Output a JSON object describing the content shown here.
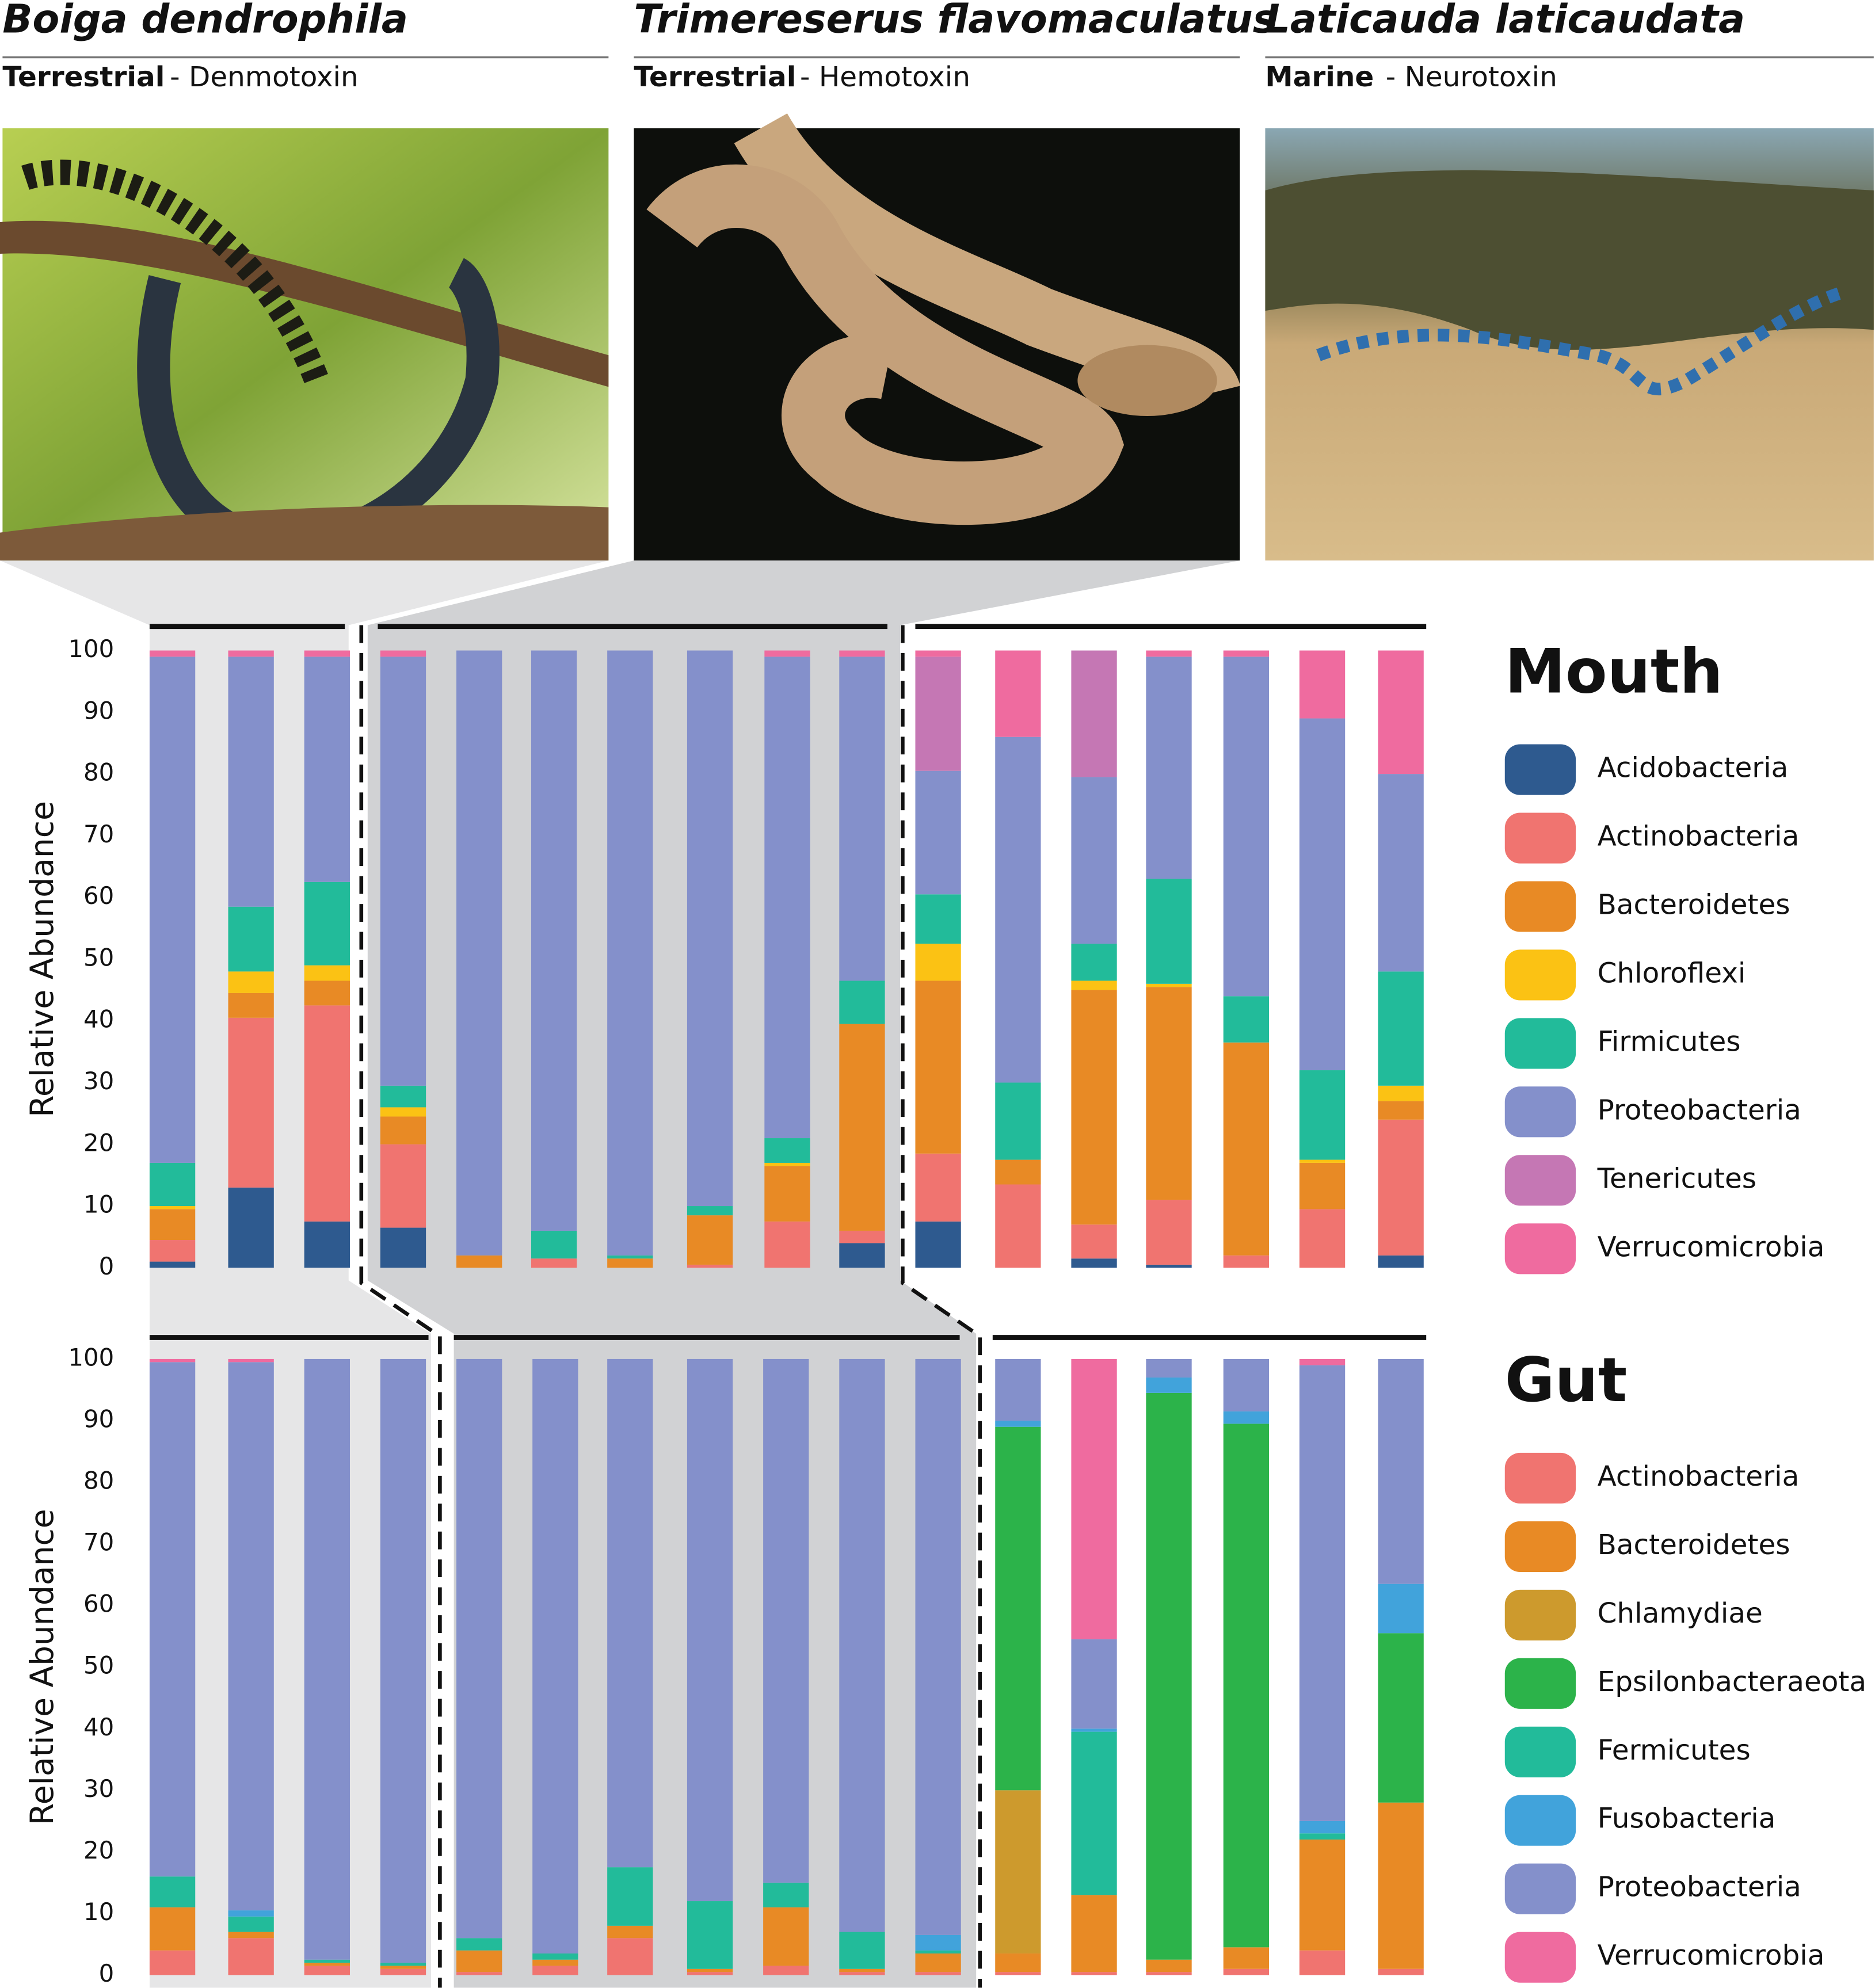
{
  "species": [
    {
      "name": "Boiga dendrophila",
      "habitat": "Terrestrial",
      "toxin": "- Denmotoxin"
    },
    {
      "name": "Trimereserus flavomaculatus",
      "habitat": "Terrestrial",
      "toxin": "- Hemotoxin"
    },
    {
      "name": "Laticauda laticaudata",
      "habitat": "Marine",
      "toxin": "- Neurotoxin"
    }
  ],
  "chart_data": [
    {
      "type": "stacked_bar",
      "title": "Mouth",
      "ylabel": "Relative Abundance",
      "categories": [
        null,
        null,
        null,
        null,
        null,
        null,
        null,
        null,
        null,
        null,
        null,
        null,
        null,
        null,
        null,
        null,
        null
      ],
      "ylim": [
        0,
        100
      ],
      "yticks": [
        0,
        10,
        20,
        30,
        40,
        50,
        60,
        70,
        80,
        90,
        100
      ],
      "series": [
        {
          "name": "Acidobacteria",
          "color": "#2e5a8f",
          "values": [
            1,
            13,
            7.5,
            6.5,
            0,
            0,
            0,
            0,
            0,
            4,
            7.5,
            0,
            1.5,
            0.5,
            0,
            0,
            2
          ]
        },
        {
          "name": "Actinobacteria",
          "color": "#f07470",
          "values": [
            3.5,
            27.5,
            35,
            13.5,
            0,
            1.5,
            0,
            0.5,
            7.5,
            2,
            11,
            13.5,
            5.5,
            10.5,
            2,
            9.5,
            22
          ]
        },
        {
          "name": "Bacteroidetes",
          "color": "#e88a25",
          "values": [
            5,
            4,
            4,
            4.5,
            2,
            0,
            1.5,
            8,
            9,
            33.5,
            28,
            4,
            38,
            34.5,
            34.5,
            7.5,
            3
          ]
        },
        {
          "name": "Chloroflexi",
          "color": "#fbc214",
          "values": [
            0.5,
            3.5,
            2.5,
            1.5,
            0,
            0,
            0,
            0,
            0.5,
            0,
            6,
            0,
            1.5,
            0.5,
            0,
            0.5,
            2.5
          ]
        },
        {
          "name": "Firmicutes",
          "color": "#22bb9a",
          "values": [
            7,
            10.5,
            13.5,
            3.5,
            0,
            4.5,
            0.5,
            1.5,
            4,
            7,
            8,
            12.5,
            6,
            17,
            7.5,
            14.5,
            18.5
          ]
        },
        {
          "name": "Proteobacteria",
          "color": "#8490cb",
          "values": [
            82,
            40.5,
            36.5,
            69.5,
            98,
            94,
            98,
            90,
            78,
            52.5,
            20,
            56,
            27,
            36,
            55,
            57,
            32
          ]
        },
        {
          "name": "Tenericutes",
          "color": "#c577b4",
          "values": [
            0,
            0,
            0,
            0,
            0,
            0,
            0,
            0,
            0,
            0,
            18.5,
            0,
            20.5,
            0,
            0,
            0,
            0
          ]
        },
        {
          "name": "Verrucomicrobia",
          "color": "#ef6b9f",
          "values": [
            1,
            1,
            1,
            1,
            0,
            0,
            0,
            0,
            1,
            1,
            1,
            14,
            0,
            1,
            1,
            11,
            20
          ]
        }
      ]
    },
    {
      "type": "stacked_bar",
      "title": "Gut",
      "ylabel": "Relative Abundance",
      "categories": [
        null,
        null,
        null,
        null,
        null,
        null,
        null,
        null,
        null,
        null,
        null,
        null,
        null,
        null,
        null,
        null,
        null
      ],
      "ylim": [
        0,
        100
      ],
      "yticks": [
        0,
        10,
        20,
        30,
        40,
        50,
        60,
        70,
        80,
        90,
        100
      ],
      "series": [
        {
          "name": "Actinobacteria",
          "color": "#f07470",
          "values": [
            4,
            6,
            1.5,
            1,
            0.5,
            1.5,
            6,
            0.5,
            1.5,
            0.5,
            0.5,
            0.5,
            0.5,
            0.5,
            1,
            4,
            1
          ]
        },
        {
          "name": "Bacteroidetes",
          "color": "#e88a25",
          "values": [
            7,
            1,
            0.5,
            0.5,
            3.5,
            1,
            2,
            0.5,
            9.5,
            0.5,
            3,
            3,
            12.5,
            2,
            3.5,
            18,
            27
          ]
        },
        {
          "name": "Chlamydiae",
          "color": "#cd9a2d",
          "values": [
            0,
            0,
            0,
            0,
            0,
            0,
            0,
            0,
            0,
            0,
            0,
            26.5,
            0,
            0,
            0,
            0,
            0
          ]
        },
        {
          "name": "Epsilonbacteraeota",
          "color": "#2cb34a",
          "values": [
            0,
            0,
            0,
            0,
            0,
            0,
            0,
            0,
            0,
            0,
            0,
            59,
            0,
            92,
            85,
            0,
            27.5
          ]
        },
        {
          "name": "Fermicutes",
          "color": "#22bb9a",
          "values": [
            5,
            2.5,
            0.5,
            0.5,
            2,
            1,
            9.5,
            11,
            4,
            6,
            0.5,
            0,
            26.5,
            0,
            0,
            1,
            0
          ]
        },
        {
          "name": "Fusobacteria",
          "color": "#41a3db",
          "values": [
            0,
            1,
            0,
            0,
            0,
            0,
            0,
            0,
            0,
            0,
            2.5,
            1,
            0.5,
            2.5,
            2,
            2,
            8
          ]
        },
        {
          "name": "Proteobacteria",
          "color": "#8490cb",
          "values": [
            83.5,
            89,
            97.5,
            98,
            94,
            96.5,
            82.5,
            88,
            85,
            93,
            93.5,
            10,
            14.5,
            3,
            8.5,
            74,
            36.5
          ]
        },
        {
          "name": "Verrucomicrobia",
          "color": "#ef6b9f",
          "values": [
            0.5,
            0.5,
            0,
            0,
            0,
            0,
            0,
            0,
            0,
            0,
            0,
            0,
            45.5,
            0,
            0,
            1,
            0
          ]
        }
      ]
    }
  ]
}
